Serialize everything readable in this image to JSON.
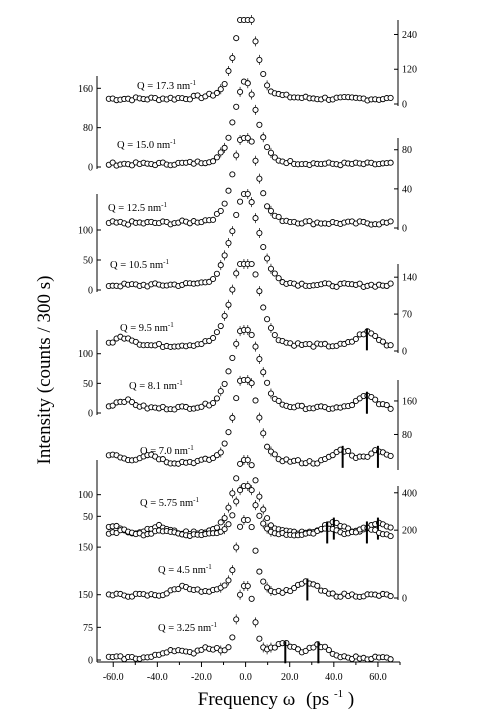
{
  "chart_data": {
    "type": "scatter",
    "xlabel": "Frequency ω (ps⁻¹)",
    "ylabel": "Intensity (counts / 300 s)",
    "xlim": [
      -66,
      70
    ],
    "x_ticks": [
      -60.0,
      -40.0,
      -20.0,
      0.0,
      20.0,
      40.0,
      60.0
    ],
    "x_tick_labels": [
      "-60.0",
      "-40.0",
      "-20.0",
      "0.0",
      "20.0",
      "40.0",
      "60.0"
    ],
    "grid": false,
    "panels": [
      {
        "q_label": "Q = 17.3 nm⁻¹",
        "q": 17.3,
        "ylim": [
          0,
          290
        ],
        "y_axis_side": "right",
        "y_ticks": [
          0,
          120,
          240
        ],
        "y_tick_labels": [
          "0",
          "120",
          "240"
        ],
        "peak": 250,
        "sigma": 4.5,
        "baseline": 18,
        "marker_freqs": []
      },
      {
        "q_label": "Q = 15.0 nm⁻¹",
        "q": 15.0,
        "ylim": [
          0,
          185
        ],
        "y_axis_side": "left",
        "y_ticks": [
          0,
          80,
          160
        ],
        "y_tick_labels": [
          "0",
          "80",
          "160"
        ],
        "peak": 130,
        "sigma": 5,
        "baseline": 6,
        "marker_freqs": []
      },
      {
        "q_label": "Q = 12.5 nm⁻¹",
        "q": 12.5,
        "ylim": [
          0,
          92
        ],
        "y_axis_side": "right",
        "y_ticks": [
          0,
          40,
          80
        ],
        "y_tick_labels": [
          "0",
          "40",
          "80"
        ],
        "peak": 75,
        "sigma": 5,
        "baseline": 5,
        "marker_freqs": []
      },
      {
        "q_label": "Q = 10.5 nm⁻¹",
        "q": 10.5,
        "ylim": [
          0,
          160
        ],
        "y_axis_side": "left",
        "y_ticks": [
          0,
          50,
          100
        ],
        "y_tick_labels": [
          "0",
          "50",
          "100"
        ],
        "peak": 120,
        "sigma": 6,
        "baseline": 8,
        "marker_freqs": []
      },
      {
        "q_label": "Q = 9.5 nm⁻¹",
        "q": 9.5,
        "ylim": [
          0,
          165
        ],
        "y_axis_side": "right",
        "y_ticks": [
          0,
          70,
          140
        ],
        "y_tick_labels": [
          "0",
          "70",
          "140"
        ],
        "peak": 140,
        "sigma": 6,
        "baseline": 10,
        "marker_freqs": [
          55
        ]
      },
      {
        "q_label": "Q = 8.1 nm⁻¹",
        "q": 8.1,
        "ylim": [
          0,
          140
        ],
        "y_axis_side": "left",
        "y_ticks": [
          0,
          50,
          100
        ],
        "y_tick_labels": [
          "0",
          "50",
          "100"
        ],
        "peak": 110,
        "sigma": 6,
        "baseline": 8,
        "marker_freqs": [
          55
        ]
      },
      {
        "q_label": "Q = 7.0 nm⁻¹",
        "q": 7.0,
        "ylim": [
          0,
          210
        ],
        "y_axis_side": "right",
        "y_ticks": [
          80,
          160
        ],
        "y_tick_labels": [
          "80",
          "160"
        ],
        "peak": 170,
        "sigma": 5,
        "baseline": 12,
        "marker_freqs": [
          44,
          60
        ]
      },
      {
        "q_label": "Q = 5.75 nm⁻¹",
        "q": 5.75,
        "ylim": [
          0,
          180
        ],
        "y_axis_side": "left",
        "y_ticks": [
          50,
          100
        ],
        "y_tick_labels": [
          "50",
          "100"
        ],
        "peak": 140,
        "sigma": 5,
        "baseline": 10,
        "marker_freqs": [
          40,
          60
        ]
      },
      {
        "q_label": "",
        "q": null,
        "ylim": [
          0,
          460
        ],
        "y_axis_side": "right",
        "y_ticks": [
          400
        ],
        "y_tick_labels": [
          "400"
        ],
        "peak": 380,
        "sigma": 4,
        "baseline": 20,
        "marker_freqs": [
          37,
          55
        ]
      },
      {
        "q_label": "Q = 4.5 nm⁻¹",
        "q": 4.5,
        "ylim": [
          0,
          230
        ],
        "y_axis_side": "both",
        "y_ticks_left": [
          150
        ],
        "y_tick_labels_left": [
          "150"
        ],
        "y_ticks_right": [
          0,
          200
        ],
        "y_tick_labels_right": [
          "0",
          "200"
        ],
        "peak": 200,
        "sigma": 3.5,
        "baseline": 8,
        "marker_freqs": [
          28
        ]
      },
      {
        "q_label": "Q = 3.25 nm⁻¹",
        "q": 3.25,
        "ylim": [
          0,
          170
        ],
        "y_axis_side": "left",
        "y_ticks": [
          0,
          75,
          150
        ],
        "y_tick_labels": [
          "0",
          "75",
          "150"
        ],
        "peak": 150,
        "sigma": 3,
        "baseline": 5,
        "marker_freqs": [
          18,
          33
        ]
      }
    ]
  },
  "labels": {
    "x_axis_text": "Frequency ",
    "x_axis_omega": "ω",
    "x_axis_units": "(ps",
    "x_axis_sup": "-1",
    "x_axis_close": ")",
    "y_axis_text": "Intensity (counts / 300 s)"
  }
}
